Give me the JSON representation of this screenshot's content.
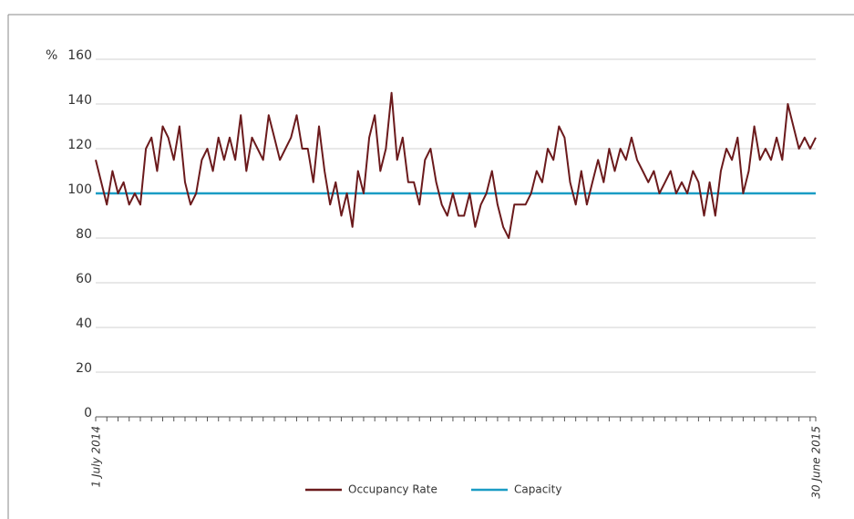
{
  "chart_data": {
    "type": "line",
    "y_label": "%",
    "categories": [
      "1 July 2014",
      null,
      null,
      null,
      null,
      null,
      null,
      null,
      null,
      null,
      null,
      null,
      null,
      null,
      null,
      null,
      null,
      null,
      null,
      null,
      null,
      null,
      null,
      null,
      null,
      null,
      null,
      null,
      null,
      null,
      null,
      null,
      null,
      null,
      null,
      null,
      null,
      null,
      null,
      null,
      null,
      null,
      null,
      null,
      null,
      null,
      null,
      null,
      null,
      null,
      null,
      null,
      null,
      null,
      null,
      null,
      null,
      null,
      null,
      null,
      null,
      null,
      null,
      null,
      null,
      null,
      null,
      null,
      null,
      null,
      null,
      null,
      null,
      null,
      null,
      null,
      null,
      null,
      null,
      null,
      null,
      null,
      null,
      null,
      null,
      null,
      null,
      null,
      null,
      null,
      null,
      null,
      null,
      null,
      null,
      null,
      null,
      null,
      null,
      null,
      null,
      null,
      null,
      null,
      null,
      null,
      null,
      null,
      null,
      null,
      null,
      null,
      null,
      null,
      null,
      null,
      null,
      null,
      null,
      null,
      null,
      null,
      null,
      null,
      null,
      null,
      null,
      null,
      null,
      "30 June 2015"
    ],
    "series": [
      {
        "name": "Occupancy Rate",
        "color": "#6b1a1c",
        "values": [
          115,
          105,
          95,
          110,
          100,
          105,
          95,
          100,
          95,
          120,
          125,
          110,
          130,
          125,
          115,
          130,
          105,
          95,
          100,
          115,
          120,
          110,
          125,
          115,
          125,
          115,
          135,
          110,
          125,
          120,
          115,
          135,
          125,
          115,
          120,
          125,
          135,
          120,
          120,
          105,
          130,
          110,
          95,
          105,
          90,
          100,
          85,
          110,
          100,
          125,
          135,
          110,
          120,
          145,
          115,
          125,
          105,
          105,
          95,
          115,
          120,
          105,
          95,
          90,
          100,
          90,
          90,
          100,
          85,
          95,
          100,
          110,
          95,
          85,
          80,
          95,
          95,
          95,
          100,
          110,
          105,
          120,
          115,
          130,
          125,
          105,
          95,
          110,
          95,
          105,
          115,
          105,
          120,
          110,
          120,
          115,
          125,
          115,
          110,
          105,
          110,
          100,
          105,
          110,
          100,
          105,
          100,
          110,
          105,
          90,
          105,
          90,
          110,
          120,
          115,
          125,
          100,
          110,
          130,
          115,
          120,
          115,
          125,
          115,
          140,
          130,
          120,
          125,
          120,
          125
        ]
      },
      {
        "name": "Capacity",
        "color": "#1a9cc4",
        "values": [
          100,
          100,
          100,
          100,
          100,
          100,
          100,
          100,
          100,
          100,
          100,
          100,
          100,
          100,
          100,
          100,
          100,
          100,
          100,
          100,
          100,
          100,
          100,
          100,
          100,
          100,
          100,
          100,
          100,
          100,
          100,
          100,
          100,
          100,
          100,
          100,
          100,
          100,
          100,
          100,
          100,
          100,
          100,
          100,
          100,
          100,
          100,
          100,
          100,
          100,
          100,
          100,
          100,
          100,
          100,
          100,
          100,
          100,
          100,
          100,
          100,
          100,
          100,
          100,
          100,
          100,
          100,
          100,
          100,
          100,
          100,
          100,
          100,
          100,
          100,
          100,
          100,
          100,
          100,
          100,
          100,
          100,
          100,
          100,
          100,
          100,
          100,
          100,
          100,
          100,
          100,
          100,
          100,
          100,
          100,
          100,
          100,
          100,
          100,
          100,
          100,
          100,
          100,
          100,
          100,
          100,
          100,
          100,
          100,
          100,
          100,
          100,
          100,
          100,
          100,
          100,
          100,
          100,
          100,
          100,
          100,
          100,
          100,
          100,
          100,
          100,
          100,
          100,
          100,
          100
        ]
      }
    ],
    "ylim": [
      0,
      160
    ],
    "yticks": [
      0,
      20,
      40,
      60,
      80,
      100,
      120,
      140,
      160
    ],
    "grid": true
  }
}
